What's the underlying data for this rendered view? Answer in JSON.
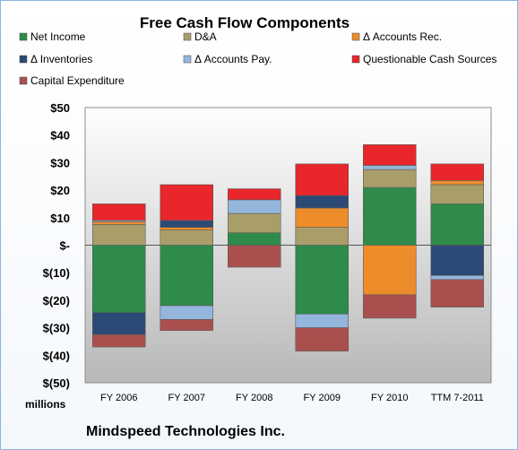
{
  "chart_data": {
    "type": "bar",
    "stacked": true,
    "title": "Free Cash Flow Components",
    "ylabel": "millions",
    "footer": "Mindspeed Technologies Inc.",
    "ylim": [
      -50,
      50
    ],
    "yticks": [
      50,
      40,
      30,
      20,
      10,
      0,
      -10,
      -20,
      -30,
      -40,
      -50
    ],
    "ytick_labels": [
      "$50",
      "$40",
      "$30",
      "$20",
      "$10",
      "$-",
      "$(10)",
      "$(20)",
      "$(30)",
      "$(40)",
      "$(50)"
    ],
    "grid": false,
    "legend_position": "top",
    "categories": [
      "FY 2006",
      "FY 2007",
      "FY 2008",
      "FY 2009",
      "FY 2010",
      "TTM 7-2011"
    ],
    "series": [
      {
        "name": "Net Income",
        "color": "#2e8b4a",
        "values": [
          -24.5,
          -22.0,
          4.5,
          -25.0,
          21.0,
          15.0
        ]
      },
      {
        "name": "D&A",
        "color": "#a99d6a",
        "values": [
          7.5,
          5.5,
          7.0,
          6.5,
          6.5,
          7.0
        ]
      },
      {
        "name": "Δ Accounts Rec.",
        "color": "#ee8c2c",
        "values": [
          1.0,
          1.0,
          0.0,
          7.0,
          -18.0,
          1.5
        ]
      },
      {
        "name": "Δ Inventories",
        "color": "#2b4a75",
        "values": [
          -8.0,
          2.5,
          0.0,
          4.5,
          0.0,
          -11.0
        ]
      },
      {
        "name": "Δ Accounts Pay.",
        "color": "#94b6dc",
        "values": [
          0.5,
          -5.0,
          5.0,
          -5.0,
          1.5,
          -1.5
        ]
      },
      {
        "name": "Questionable Cash Sources",
        "color": "#e8262b",
        "values": [
          6.0,
          13.0,
          4.0,
          11.5,
          7.5,
          6.0
        ]
      },
      {
        "name": "Capital Expenditure",
        "color": "#a9504e",
        "values": [
          -4.5,
          -4.0,
          -8.0,
          -8.5,
          -8.5,
          -10.0
        ]
      }
    ]
  }
}
